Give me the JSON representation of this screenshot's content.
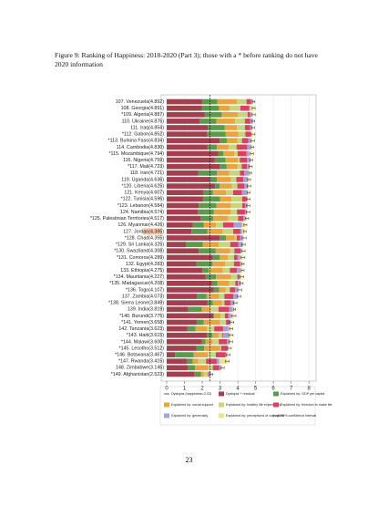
{
  "caption": "Figure 9: Ranking of Happiness: 2018-2020 (Part 3); those with a * before ranking do not have 2020 information",
  "page_number": "23",
  "chart_data": {
    "type": "stacked-bar-horizontal",
    "categories": [
      "107. Venezuela(4.892)",
      "108. Georgia(4.891)",
      "*109. Algeria(4.887)",
      "110. Ukraine(4.875)",
      "111. Iraq(4.854)",
      "*112. Gabon(4.852)",
      "*113. Burkina Faso(4.834)",
      "114. Cambodia(4.830)",
      "*115. Mozambique(4.794)",
      "116. Nigeria(4.759)",
      "*117. Mali(4.723)",
      "118. Iran(4.721)",
      "119. Uganda(4.636)",
      "*120. Liberia(4.625)",
      "121. Kenya(4.607)",
      "*122. Tunisia(4.596)",
      "*123. Lebanon(4.584)",
      "124. Namibia(4.574)",
      "*125. Palestinian Territories(4.517)",
      "126. Myanmar(4.426)",
      "127. Jordan(4.395)",
      "*128. Chad(4.355)",
      "*129. Sri Lanka(4.325)",
      "*130. Swaziland(4.308)",
      "*131. Comoros(4.289)",
      "132. Egypt(4.283)",
      "133. Ethiopia(4.275)",
      "*134. Mauritania(4.227)",
      "*135. Madagascar(4.208)",
      "*136. Togo(4.107)",
      "137. Zambia(4.073)",
      "*138. Sierra Leone(3.849)",
      "139. India(3.819)",
      "*140. Burundi(3.775)",
      "*141. Yemen(3.658)",
      "142. Tanzania(3.623)",
      "*143. Haiti(3.615)",
      "*144. Malawi(3.600)",
      "*145. Lesotho(3.512)",
      "*146. Botswana(3.467)",
      "*147. Rwanda(3.415)",
      "148. Zimbabwe(3.145)",
      "*149. Afghanistan(2.523)"
    ],
    "series": [
      {
        "name": "Dystopia + residual",
        "color": "#a3404f",
        "values": [
          1.992,
          1.991,
          2.147,
          1.845,
          2.304,
          2.272,
          2.984,
          2.28,
          2.894,
          2.709,
          2.973,
          1.771,
          2.416,
          2.725,
          2.087,
          2.046,
          1.804,
          1.754,
          1.917,
          1.476,
          1.395,
          2.985,
          1.075,
          1.808,
          2.589,
          1.683,
          2.005,
          2.177,
          2.558,
          2.657,
          1.693,
          2.299,
          1.219,
          2.625,
          1.688,
          1.173,
          2.265,
          1.98,
          1.662,
          0.467,
          1.165,
          1.195,
          1.573
        ]
      },
      {
        "name": "Explained by: GDP per capita",
        "color": "#5a9a4a",
        "values": [
          0.85,
          0.95,
          0.95,
          0.95,
          0.95,
          1.05,
          0.4,
          0.55,
          0.3,
          0.6,
          0.4,
          1.05,
          0.4,
          0.25,
          0.5,
          0.95,
          1.0,
          0.9,
          0.7,
          0.6,
          0.9,
          0.35,
          0.95,
          0.95,
          0.4,
          0.9,
          0.35,
          0.6,
          0.3,
          0.3,
          0.55,
          0.3,
          0.75,
          0.05,
          0.4,
          0.45,
          0.3,
          0.2,
          0.45,
          1.05,
          0.3,
          0.4,
          0.35
        ]
      },
      {
        "name": "Explained by: social support",
        "color": "#e9a43e",
        "values": [
          1.1,
          0.6,
          0.9,
          1.05,
          0.7,
          0.7,
          0.6,
          0.65,
          0.6,
          0.7,
          0.6,
          0.7,
          0.8,
          0.7,
          0.75,
          0.65,
          0.8,
          0.95,
          0.85,
          0.7,
          0.85,
          0.5,
          0.9,
          0.8,
          0.45,
          0.7,
          0.8,
          0.85,
          0.65,
          0.35,
          0.7,
          0.5,
          0.5,
          0.35,
          0.9,
          0.65,
          0.35,
          0.4,
          0.9,
          0.8,
          0.3,
          0.75,
          0.15
        ]
      },
      {
        "name": "Explained by: healthy life expectancy",
        "color": "#c6d67c",
        "values": [
          0.55,
          0.6,
          0.55,
          0.55,
          0.45,
          0.4,
          0.25,
          0.45,
          0.2,
          0.1,
          0.25,
          0.6,
          0.3,
          0.3,
          0.4,
          0.6,
          0.65,
          0.35,
          0.55,
          0.4,
          0.6,
          0.1,
          0.65,
          0.25,
          0.35,
          0.5,
          0.4,
          0.35,
          0.35,
          0.25,
          0.3,
          0.15,
          0.45,
          0.25,
          0.35,
          0.4,
          0.2,
          0.35,
          0.05,
          0.45,
          0.45,
          0.25,
          0.25
        ]
      },
      {
        "name": "Explained by: freedom to make life",
        "color": "#d8425e",
        "values": [
          0.25,
          0.5,
          0.15,
          0.3,
          0.3,
          0.3,
          0.35,
          0.6,
          0.5,
          0.4,
          0.3,
          0.25,
          0.4,
          0.4,
          0.5,
          0.25,
          0.15,
          0.45,
          0.3,
          0.6,
          0.4,
          0.2,
          0.45,
          0.35,
          0.2,
          0.35,
          0.4,
          0.1,
          0.15,
          0.3,
          0.5,
          0.35,
          0.6,
          0.2,
          0.2,
          0.5,
          0.05,
          0.45,
          0.35,
          0.55,
          0.6,
          0.35,
          0.05
        ]
      },
      {
        "name": "Explained by: generosity",
        "color": "#9ea3d9",
        "values": [
          0.1,
          0.05,
          0.07,
          0.15,
          0.1,
          0.05,
          0.15,
          0.2,
          0.15,
          0.2,
          0.15,
          0.25,
          0.25,
          0.2,
          0.3,
          0.05,
          0.15,
          0.1,
          0.1,
          0.45,
          0.1,
          0.15,
          0.25,
          0.05,
          0.15,
          0.05,
          0.2,
          0.05,
          0.15,
          0.15,
          0.25,
          0.2,
          0.2,
          0.15,
          0.05,
          0.3,
          0.35,
          0.15,
          0.05,
          0.05,
          0.15,
          0.1,
          0.1
        ]
      },
      {
        "name": "Explained by: perceptions of corruption",
        "color": "#efe08c",
        "values": [
          0.05,
          0.2,
          0.12,
          0.03,
          0.05,
          0.08,
          0.1,
          0.1,
          0.15,
          0.05,
          0.05,
          0.1,
          0.07,
          0.05,
          0.07,
          0.05,
          0.03,
          0.07,
          0.1,
          0.2,
          0.15,
          0.07,
          0.05,
          0.1,
          0.15,
          0.1,
          0.12,
          0.1,
          0.05,
          0.1,
          0.08,
          0.05,
          0.1,
          0.15,
          0.07,
          0.15,
          0.1,
          0.07,
          0.05,
          0.1,
          0.45,
          0.1,
          0.05
        ]
      }
    ],
    "ci": [
      0.07,
      0.08,
      0.09,
      0.07,
      0.08,
      0.11,
      0.1,
      0.08,
      0.09,
      0.07,
      0.09,
      0.06,
      0.08,
      0.1,
      0.08,
      0.09,
      0.09,
      0.1,
      0.09,
      0.08,
      0.07,
      0.11,
      0.09,
      0.1,
      0.11,
      0.07,
      0.08,
      0.1,
      0.09,
      0.11,
      0.1,
      0.1,
      0.05,
      0.12,
      0.11,
      0.09,
      0.12,
      0.1,
      0.12,
      0.11,
      0.1,
      0.09,
      0.08
    ],
    "ci_label": "95% confidence interval",
    "dystopia": 2.43,
    "dystopia_label": "Dystopia (happiness=2.43)",
    "xlim": [
      0,
      8.3
    ],
    "xticks": [
      0,
      1,
      2,
      3,
      4,
      5,
      6,
      7,
      8
    ],
    "grid": true,
    "highlight": "127. Jordan(4.395)"
  }
}
